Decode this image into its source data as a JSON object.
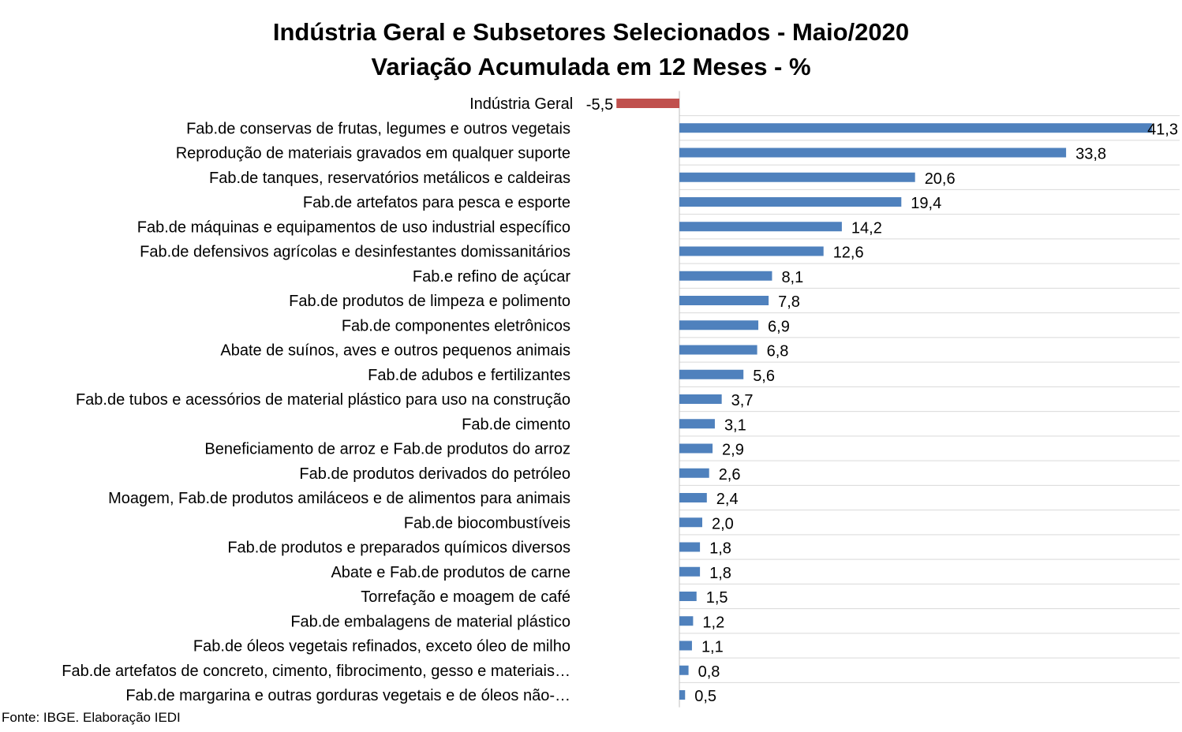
{
  "chart_data": {
    "type": "bar",
    "orientation": "horizontal",
    "title": "Indústria Geral e Subsetores Selecionados - Maio/2020",
    "subtitle": "Variação Acumulada em 12 Meses - %",
    "categories": [
      "Indústria Geral",
      "Fab.de conservas de frutas, legumes e outros vegetais",
      "Reprodução de materiais gravados em qualquer suporte",
      "Fab.de tanques, reservatórios metálicos e caldeiras",
      "Fab.de artefatos para pesca e esporte",
      "Fab.de máquinas e equipamentos de uso industrial específico",
      "Fab.de defensivos agrícolas e desinfestantes domissanitários",
      "Fab.e refino de açúcar",
      "Fab.de produtos de limpeza e polimento",
      "Fab.de componentes eletrônicos",
      "Abate de suínos, aves e outros pequenos animais",
      "Fab.de adubos e fertilizantes",
      "Fab.de tubos e acessórios de material plástico para uso na construção",
      "Fab.de cimento",
      "Beneficiamento de arroz e Fab.de produtos do arroz",
      "Fab.de produtos derivados do petróleo",
      "Moagem, Fab.de produtos amiláceos e de alimentos para animais",
      "Fab.de biocombustíveis",
      "Fab.de produtos e preparados químicos diversos",
      "Abate e Fab.de produtos de carne",
      "Torrefação e moagem de café",
      "Fab.de embalagens de material plástico",
      "Fab.de óleos vegetais refinados, exceto óleo de milho",
      "Fab.de artefatos de concreto, cimento, fibrocimento, gesso e materiais…",
      "Fab.de margarina e outras gorduras vegetais e de óleos não-…"
    ],
    "values": [
      -5.5,
      41.3,
      33.8,
      20.6,
      19.4,
      14.2,
      12.6,
      8.1,
      7.8,
      6.9,
      6.8,
      5.6,
      3.7,
      3.1,
      2.9,
      2.6,
      2.4,
      2.0,
      1.8,
      1.8,
      1.5,
      1.2,
      1.1,
      0.8,
      0.5
    ],
    "value_labels": [
      "-5,5",
      "41,3",
      "33,8",
      "20,6",
      "19,4",
      "14,2",
      "12,6",
      "8,1",
      "7,8",
      "6,9",
      "6,8",
      "5,6",
      "3,7",
      "3,1",
      "2,9",
      "2,6",
      "2,4",
      "2,0",
      "1,8",
      "1,8",
      "1,5",
      "1,2",
      "1,1",
      "0,8",
      "0,5"
    ],
    "colors": {
      "positive": "#4F81BD",
      "negative": "#C0504D",
      "grid": "#D9D9D9",
      "axis": "#BFBFBF"
    },
    "grid": true,
    "legend": "none"
  },
  "source": "Fonte: IBGE. Elaboração IEDI"
}
